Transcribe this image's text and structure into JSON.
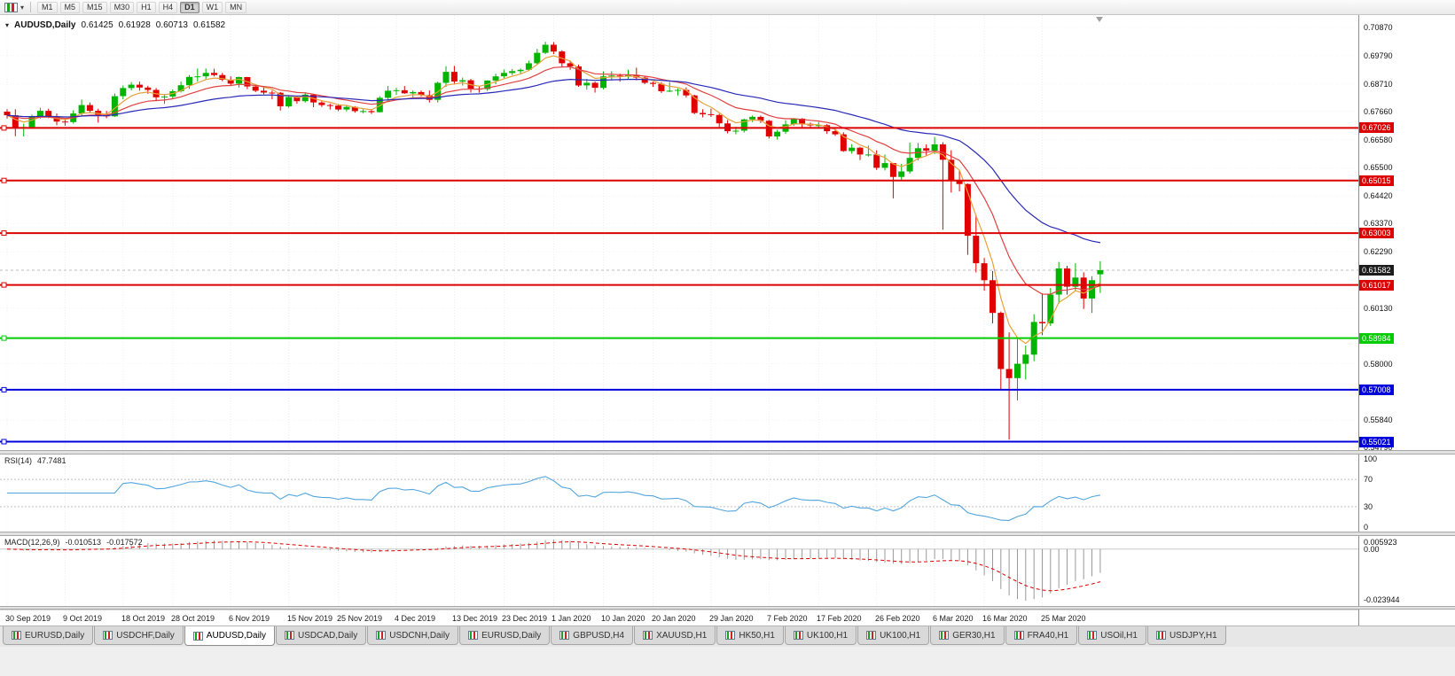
{
  "toolbar": {
    "timeframes": [
      {
        "label": "M1",
        "active": false
      },
      {
        "label": "M5",
        "active": false
      },
      {
        "label": "M15",
        "active": false
      },
      {
        "label": "M30",
        "active": false
      },
      {
        "label": "H1",
        "active": false
      },
      {
        "label": "H4",
        "active": false
      },
      {
        "label": "D1",
        "active": true
      },
      {
        "label": "W1",
        "active": false
      },
      {
        "label": "MN",
        "active": false
      }
    ]
  },
  "chart": {
    "symbol_label": "AUDUSD,Daily",
    "ohlc_open": "0.61425",
    "ohlc_high": "0.61928",
    "ohlc_low": "0.60713",
    "ohlc_close": "0.61582",
    "current_price": {
      "value": 0.61582,
      "label": "0.61582",
      "box_color": "#1c1c1c"
    },
    "levels": [
      {
        "price": 0.67026,
        "label": "0.67026",
        "color": "#dd0000"
      },
      {
        "price": 0.65015,
        "label": "0.65015",
        "color": "#dd0000"
      },
      {
        "price": 0.63003,
        "label": "0.63003",
        "color": "#dd0000"
      },
      {
        "price": 0.61017,
        "label": "0.61017",
        "color": "#dd0000"
      },
      {
        "price": 0.58984,
        "label": "0.58984",
        "color": "#00cc00"
      },
      {
        "price": 0.57008,
        "label": "0.57008",
        "color": "#0000dd"
      },
      {
        "price": 0.55021,
        "label": "0.55021",
        "color": "#0000dd"
      }
    ],
    "candle_up_color": "#00b400",
    "candle_down_color": "#e00000"
  },
  "indicators": {
    "rsi": {
      "name": "RSI(14)",
      "value": "47.7481",
      "period": 14,
      "line_color": "#53a6dd",
      "levels": [
        70,
        30
      ],
      "ticks": [
        {
          "value": 100,
          "label": "100"
        },
        {
          "value": 70,
          "label": "70"
        },
        {
          "value": 30,
          "label": "30"
        },
        {
          "value": 0,
          "label": "0"
        }
      ]
    },
    "macd": {
      "name": "MACD(12,26,9)",
      "main_value": "-0.010513",
      "signal_value": "-0.017572",
      "fast": 12,
      "slow": 26,
      "signal": 9,
      "hist_color": "#9a9a9a",
      "signal_color": "#dd0000",
      "tick_top": "0.005923",
      "tick_zero": "0.00",
      "tick_bottom": "-0.023944"
    }
  },
  "tabs": [
    {
      "label": "EURUSD,Daily",
      "active": false
    },
    {
      "label": "USDCHF,Daily",
      "active": false
    },
    {
      "label": "AUDUSD,Daily",
      "active": true
    },
    {
      "label": "USDCAD,Daily",
      "active": false
    },
    {
      "label": "USDCNH,Daily",
      "active": false
    },
    {
      "label": "EURUSD,Daily",
      "active": false
    },
    {
      "label": "GBPUSD,H4",
      "active": false
    },
    {
      "label": "XAUUSD,H1",
      "active": false
    },
    {
      "label": "HK50,H1",
      "active": false
    },
    {
      "label": "UK100,H1",
      "active": false
    },
    {
      "label": "UK100,H1",
      "active": false
    },
    {
      "label": "GER30,H1",
      "active": false
    },
    {
      "label": "FRA40,H1",
      "active": false
    },
    {
      "label": "USOil,H1",
      "active": false
    },
    {
      "label": "USDJPY,H1",
      "active": false
    }
  ],
  "chart_data": {
    "type": "candlestick",
    "symbol": "AUDUSD",
    "timeframe": "Daily",
    "y_range": [
      0.5462,
      0.7104
    ],
    "y_ticks": [
      {
        "value": 0.7087,
        "label": "0.70870"
      },
      {
        "value": 0.6979,
        "label": "0.69790"
      },
      {
        "value": 0.6871,
        "label": "0.68710"
      },
      {
        "value": 0.6766,
        "label": "0.67660"
      },
      {
        "value": 0.6658,
        "label": "0.66580"
      },
      {
        "value": 0.655,
        "label": "0.65500"
      },
      {
        "value": 0.6442,
        "label": "0.64420"
      },
      {
        "value": 0.6337,
        "label": "0.63370"
      },
      {
        "value": 0.6229,
        "label": "0.62290"
      },
      {
        "value": 0.6013,
        "label": "0.60130"
      },
      {
        "value": 0.58,
        "label": "0.58000"
      },
      {
        "value": 0.5584,
        "label": "0.55840"
      },
      {
        "value": 0.5479,
        "label": "0.54790"
      }
    ],
    "x_ticks": [
      {
        "i": 0,
        "label": "30 Sep 2019"
      },
      {
        "i": 7,
        "label": "9 Oct 2019"
      },
      {
        "i": 14,
        "label": "18 Oct 2019"
      },
      {
        "i": 20,
        "label": "28 Oct 2019"
      },
      {
        "i": 27,
        "label": "6 Nov 2019"
      },
      {
        "i": 34,
        "label": "15 Nov 2019"
      },
      {
        "i": 40,
        "label": "25 Nov 2019"
      },
      {
        "i": 47,
        "label": "4 Dec 2019"
      },
      {
        "i": 54,
        "label": "13 Dec 2019"
      },
      {
        "i": 60,
        "label": "23 Dec 2019"
      },
      {
        "i": 66,
        "label": "1 Jan 2020"
      },
      {
        "i": 72,
        "label": "10 Jan 2020"
      },
      {
        "i": 78,
        "label": "20 Jan 2020"
      },
      {
        "i": 85,
        "label": "29 Jan 2020"
      },
      {
        "i": 92,
        "label": "7 Feb 2020"
      },
      {
        "i": 98,
        "label": "17 Feb 2020"
      },
      {
        "i": 105,
        "label": "26 Feb 2020"
      },
      {
        "i": 112,
        "label": "6 Mar 2020"
      },
      {
        "i": 118,
        "label": "16 Mar 2020"
      },
      {
        "i": 125,
        "label": "25 Mar 2020"
      }
    ],
    "moving_averages": [
      {
        "type": "ema",
        "period": 5,
        "color": "#e6a23c"
      },
      {
        "type": "ema",
        "period": 13,
        "color": "#e04040"
      },
      {
        "type": "ema",
        "period": 34,
        "color": "#2929b8"
      }
    ],
    "candles": [
      [
        0.6765,
        0.6774,
        0.6739,
        0.6751
      ],
      [
        0.6751,
        0.6774,
        0.6671,
        0.6703
      ],
      [
        0.6703,
        0.6719,
        0.667,
        0.6706
      ],
      [
        0.6706,
        0.6753,
        0.6699,
        0.6746
      ],
      [
        0.6746,
        0.678,
        0.6738,
        0.6768
      ],
      [
        0.6768,
        0.6776,
        0.674,
        0.6745
      ],
      [
        0.6745,
        0.6758,
        0.6713,
        0.6727
      ],
      [
        0.6727,
        0.6737,
        0.6711,
        0.6725
      ],
      [
        0.6725,
        0.677,
        0.6719,
        0.6758
      ],
      [
        0.6758,
        0.6811,
        0.6747,
        0.679
      ],
      [
        0.679,
        0.68,
        0.6763,
        0.6768
      ],
      [
        0.6768,
        0.6776,
        0.6723,
        0.6752
      ],
      [
        0.6752,
        0.6768,
        0.674,
        0.6747
      ],
      [
        0.6747,
        0.6834,
        0.6745,
        0.6824
      ],
      [
        0.6824,
        0.6865,
        0.6812,
        0.6855
      ],
      [
        0.6855,
        0.6878,
        0.6846,
        0.6868
      ],
      [
        0.6868,
        0.688,
        0.6845,
        0.6857
      ],
      [
        0.6857,
        0.6864,
        0.6833,
        0.6848
      ],
      [
        0.6848,
        0.6855,
        0.6805,
        0.682
      ],
      [
        0.682,
        0.6832,
        0.6795,
        0.6823
      ],
      [
        0.6823,
        0.685,
        0.6816,
        0.6843
      ],
      [
        0.6843,
        0.688,
        0.6838,
        0.6866
      ],
      [
        0.6866,
        0.6905,
        0.6852,
        0.6898
      ],
      [
        0.6898,
        0.693,
        0.688,
        0.69
      ],
      [
        0.69,
        0.693,
        0.6887,
        0.6913
      ],
      [
        0.6913,
        0.6929,
        0.69,
        0.6905
      ],
      [
        0.6905,
        0.6913,
        0.6881,
        0.6887
      ],
      [
        0.6887,
        0.69,
        0.6863,
        0.6872
      ],
      [
        0.6872,
        0.6899,
        0.6857,
        0.6897
      ],
      [
        0.6897,
        0.6898,
        0.6851,
        0.6861
      ],
      [
        0.6861,
        0.687,
        0.684,
        0.6845
      ],
      [
        0.6845,
        0.6858,
        0.6831,
        0.6838
      ],
      [
        0.6838,
        0.6846,
        0.6812,
        0.6837
      ],
      [
        0.6837,
        0.684,
        0.6769,
        0.6785
      ],
      [
        0.6785,
        0.6825,
        0.678,
        0.6821
      ],
      [
        0.6821,
        0.6825,
        0.6795,
        0.6805
      ],
      [
        0.6805,
        0.684,
        0.68,
        0.683
      ],
      [
        0.683,
        0.6832,
        0.6782,
        0.68
      ],
      [
        0.68,
        0.6808,
        0.6783,
        0.679
      ],
      [
        0.679,
        0.6795,
        0.6773,
        0.6788
      ],
      [
        0.6788,
        0.6794,
        0.6767,
        0.6773
      ],
      [
        0.6773,
        0.6788,
        0.6766,
        0.6783
      ],
      [
        0.6783,
        0.6786,
        0.6761,
        0.6767
      ],
      [
        0.6767,
        0.6774,
        0.6759,
        0.6767
      ],
      [
        0.6767,
        0.6775,
        0.6756,
        0.6763
      ],
      [
        0.6763,
        0.6824,
        0.6762,
        0.6818
      ],
      [
        0.6818,
        0.6863,
        0.6805,
        0.6845
      ],
      [
        0.6845,
        0.6856,
        0.6829,
        0.6847
      ],
      [
        0.6847,
        0.6863,
        0.6833,
        0.6835
      ],
      [
        0.6835,
        0.6846,
        0.682,
        0.684
      ],
      [
        0.684,
        0.6846,
        0.6823,
        0.6828
      ],
      [
        0.6828,
        0.6846,
        0.68,
        0.681
      ],
      [
        0.681,
        0.688,
        0.68,
        0.6875
      ],
      [
        0.6875,
        0.6939,
        0.686,
        0.6917
      ],
      [
        0.6917,
        0.694,
        0.6869,
        0.688
      ],
      [
        0.688,
        0.6895,
        0.6865,
        0.6885
      ],
      [
        0.6885,
        0.689,
        0.6838,
        0.6853
      ],
      [
        0.6853,
        0.6862,
        0.6837,
        0.6851
      ],
      [
        0.6851,
        0.6885,
        0.6844,
        0.6884
      ],
      [
        0.6884,
        0.691,
        0.687,
        0.69
      ],
      [
        0.69,
        0.6926,
        0.6893,
        0.6913
      ],
      [
        0.6913,
        0.6928,
        0.6905,
        0.692
      ],
      [
        0.692,
        0.693,
        0.6908,
        0.6925
      ],
      [
        0.6925,
        0.696,
        0.692,
        0.695
      ],
      [
        0.695,
        0.7005,
        0.6945,
        0.699
      ],
      [
        0.699,
        0.7032,
        0.6985,
        0.7021
      ],
      [
        0.7021,
        0.7031,
        0.6985,
        0.6995
      ],
      [
        0.6995,
        0.7,
        0.6935,
        0.695
      ],
      [
        0.695,
        0.696,
        0.6925,
        0.6938
      ],
      [
        0.6938,
        0.6945,
        0.686,
        0.6865
      ],
      [
        0.6865,
        0.689,
        0.6849,
        0.6875
      ],
      [
        0.6875,
        0.688,
        0.6838,
        0.6856
      ],
      [
        0.6856,
        0.6919,
        0.685,
        0.69
      ],
      [
        0.69,
        0.692,
        0.6885,
        0.6903
      ],
      [
        0.6903,
        0.691,
        0.688,
        0.69
      ],
      [
        0.69,
        0.6925,
        0.689,
        0.6906
      ],
      [
        0.6906,
        0.6933,
        0.6885,
        0.6895
      ],
      [
        0.6895,
        0.69,
        0.687,
        0.6875
      ],
      [
        0.6875,
        0.688,
        0.686,
        0.6871
      ],
      [
        0.6871,
        0.6878,
        0.6836,
        0.6843
      ],
      [
        0.6843,
        0.6879,
        0.684,
        0.6845
      ],
      [
        0.6845,
        0.6854,
        0.6827,
        0.6848
      ],
      [
        0.6848,
        0.6858,
        0.6819,
        0.6827
      ],
      [
        0.6827,
        0.683,
        0.6755,
        0.676
      ],
      [
        0.676,
        0.6774,
        0.6743,
        0.6755
      ],
      [
        0.6755,
        0.6776,
        0.6745,
        0.6752
      ],
      [
        0.6752,
        0.6757,
        0.67,
        0.672
      ],
      [
        0.672,
        0.6733,
        0.6682,
        0.669
      ],
      [
        0.669,
        0.6707,
        0.6678,
        0.6692
      ],
      [
        0.6692,
        0.6738,
        0.6685,
        0.6735
      ],
      [
        0.6735,
        0.675,
        0.6725,
        0.6745
      ],
      [
        0.6745,
        0.675,
        0.6722,
        0.673
      ],
      [
        0.673,
        0.6733,
        0.6662,
        0.667
      ],
      [
        0.667,
        0.6695,
        0.6658,
        0.6688
      ],
      [
        0.6688,
        0.6732,
        0.668,
        0.6716
      ],
      [
        0.6716,
        0.674,
        0.671,
        0.6738
      ],
      [
        0.6738,
        0.674,
        0.6703,
        0.6718
      ],
      [
        0.6718,
        0.6723,
        0.67,
        0.6712
      ],
      [
        0.6712,
        0.6725,
        0.6702,
        0.6713
      ],
      [
        0.6713,
        0.6717,
        0.668,
        0.669
      ],
      [
        0.669,
        0.6703,
        0.6672,
        0.6678
      ],
      [
        0.6678,
        0.6686,
        0.6611,
        0.6614
      ],
      [
        0.6614,
        0.6641,
        0.6604,
        0.6627
      ],
      [
        0.6627,
        0.663,
        0.658,
        0.6601
      ],
      [
        0.6601,
        0.6635,
        0.6593,
        0.6601
      ],
      [
        0.6601,
        0.6617,
        0.6542,
        0.655
      ],
      [
        0.655,
        0.6601,
        0.654,
        0.6568
      ],
      [
        0.6568,
        0.6568,
        0.6433,
        0.6515
      ],
      [
        0.6515,
        0.6565,
        0.6503,
        0.6536
      ],
      [
        0.6536,
        0.6646,
        0.6528,
        0.6588
      ],
      [
        0.6588,
        0.6645,
        0.6578,
        0.6625
      ],
      [
        0.6625,
        0.664,
        0.6595,
        0.6616
      ],
      [
        0.6616,
        0.6668,
        0.6603,
        0.664
      ],
      [
        0.664,
        0.6648,
        0.6313,
        0.6581
      ],
      [
        0.6581,
        0.6617,
        0.6455,
        0.65
      ],
      [
        0.65,
        0.654,
        0.646,
        0.6488
      ],
      [
        0.6488,
        0.649,
        0.6217,
        0.629
      ],
      [
        0.629,
        0.637,
        0.615,
        0.6185
      ],
      [
        0.6185,
        0.6205,
        0.608,
        0.612
      ],
      [
        0.612,
        0.6155,
        0.5955,
        0.5995
      ],
      [
        0.5995,
        0.6,
        0.57,
        0.578
      ],
      [
        0.578,
        0.592,
        0.551,
        0.5745
      ],
      [
        0.5745,
        0.5895,
        0.566,
        0.58
      ],
      [
        0.58,
        0.587,
        0.574,
        0.5835
      ],
      [
        0.5835,
        0.599,
        0.581,
        0.596
      ],
      [
        0.596,
        0.607,
        0.591,
        0.5955
      ],
      [
        0.5955,
        0.609,
        0.5945,
        0.6065
      ],
      [
        0.6065,
        0.619,
        0.603,
        0.6165
      ],
      [
        0.6165,
        0.6175,
        0.6065,
        0.6095
      ],
      [
        0.6095,
        0.6185,
        0.608,
        0.613
      ],
      [
        0.613,
        0.615,
        0.601,
        0.605
      ],
      [
        0.605,
        0.6135,
        0.5995,
        0.612
      ],
      [
        0.61425,
        0.61928,
        0.60713,
        0.61582
      ]
    ]
  }
}
